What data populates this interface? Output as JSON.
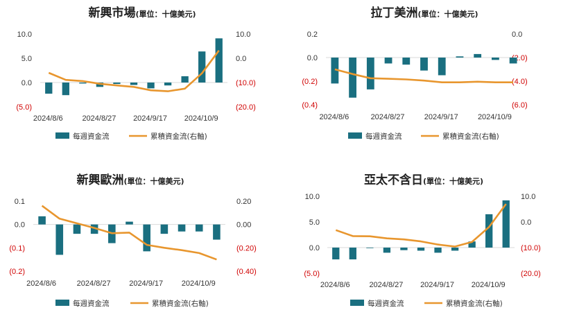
{
  "legend": {
    "bar_label": "每週資金流",
    "line_label": "累積資金流(右軸)"
  },
  "colors": {
    "bar": "#1a6f80",
    "line": "#e8962e",
    "axis": "#d9d9d9",
    "negative_tick": "#d00000",
    "tick": "#333333"
  },
  "chart_data": [
    {
      "type": "bar+line",
      "title": "新興市場",
      "title_unit": "(單位：十億美元)",
      "x_tick_labels": [
        "2024/8/6",
        "2024/8/27",
        "2024/9/17",
        "2024/10/9"
      ],
      "x_tick_indices": [
        0,
        3,
        6,
        9
      ],
      "categories": [
        "2024/8/6",
        "2024/8/13",
        "2024/8/20",
        "2024/8/27",
        "2024/9/3",
        "2024/9/10",
        "2024/9/17",
        "2024/9/24",
        "2024/10/2",
        "2024/10/9",
        "2024/10/16"
      ],
      "left_axis": {
        "min": -5,
        "max": 10,
        "ticks": [
          10,
          5,
          0,
          -5
        ],
        "labels": [
          "10.0",
          "5.0",
          "0.0",
          "(5.0)"
        ]
      },
      "right_axis": {
        "min": -20,
        "max": 10,
        "ticks": [
          10,
          0,
          -10,
          -20
        ],
        "labels": [
          "10.0",
          "0.0",
          "(10.0)",
          "(20.0)"
        ]
      },
      "series": [
        {
          "name": "每週資金流",
          "kind": "bar",
          "axis": "left",
          "values": [
            -2.3,
            -2.6,
            -0.2,
            -0.9,
            -0.3,
            -0.5,
            -1.2,
            -0.6,
            1.3,
            6.4,
            9.1
          ]
        },
        {
          "name": "累積資金流(右軸)",
          "kind": "line",
          "axis": "right",
          "values": [
            -6.0,
            -8.9,
            -9.4,
            -10.5,
            -11.2,
            -11.8,
            -13.2,
            -13.6,
            -12.5,
            -6.2,
            3.2
          ]
        }
      ]
    },
    {
      "type": "bar+line",
      "title": "拉丁美洲",
      "title_unit": "(單位：十億美元)",
      "x_tick_labels": [
        "2024/8/6",
        "2024/8/27",
        "2024/9/17",
        "2024/10/9"
      ],
      "x_tick_indices": [
        0,
        3,
        6,
        9
      ],
      "categories": [
        "2024/8/6",
        "2024/8/13",
        "2024/8/20",
        "2024/8/27",
        "2024/9/3",
        "2024/9/10",
        "2024/9/17",
        "2024/9/24",
        "2024/10/2",
        "2024/10/9",
        "2024/10/16"
      ],
      "left_axis": {
        "min": -0.4,
        "max": 0.2,
        "ticks": [
          0.2,
          0,
          -0.2,
          -0.4
        ],
        "labels": [
          "0.2",
          "0.0",
          "(0.2)",
          "(0.4)"
        ]
      },
      "right_axis": {
        "min": -6,
        "max": 0,
        "ticks": [
          0,
          -2,
          -4,
          -6
        ],
        "labels": [
          "0.0",
          "(2.0)",
          "(4.0)",
          "(6.0)"
        ]
      },
      "series": [
        {
          "name": "每週資金流",
          "kind": "bar",
          "axis": "left",
          "values": [
            -0.22,
            -0.34,
            -0.27,
            -0.05,
            -0.06,
            -0.11,
            -0.15,
            0.01,
            0.03,
            -0.02,
            -0.05
          ]
        },
        {
          "name": "累積資金流(右軸)",
          "kind": "line",
          "axis": "right",
          "values": [
            -3.0,
            -3.4,
            -3.75,
            -3.8,
            -3.85,
            -3.95,
            -4.1,
            -4.1,
            -4.05,
            -4.1,
            -4.1
          ]
        }
      ]
    },
    {
      "type": "bar+line",
      "title": "新興歐洲",
      "title_unit": "(單位：十億美元)",
      "x_tick_labels": [
        "2024/8/6",
        "2024/8/27",
        "2024/9/17",
        "2024/10/9"
      ],
      "x_tick_indices": [
        0,
        3,
        6,
        9
      ],
      "categories": [
        "2024/8/6",
        "2024/8/13",
        "2024/8/20",
        "2024/8/27",
        "2024/9/3",
        "2024/9/10",
        "2024/9/17",
        "2024/9/24",
        "2024/10/2",
        "2024/10/9",
        "2024/10/16"
      ],
      "left_axis": {
        "min": -0.2,
        "max": 0.1,
        "ticks": [
          0.1,
          0,
          -0.1,
          -0.2
        ],
        "labels": [
          "0.1",
          "0.0",
          "(0.1)",
          "(0.2)"
        ]
      },
      "right_axis": {
        "min": -0.4,
        "max": 0.2,
        "ticks": [
          0.2,
          0,
          -0.2,
          -0.4
        ],
        "labels": [
          "0.20",
          "0.00",
          "(0.20)",
          "(0.40)"
        ]
      },
      "series": [
        {
          "name": "每週資金流",
          "kind": "bar",
          "axis": "left",
          "values": [
            0.035,
            -0.13,
            -0.04,
            -0.04,
            -0.08,
            0.012,
            -0.115,
            -0.04,
            -0.03,
            -0.03,
            -0.065
          ]
        },
        {
          "name": "累積資金流(右軸)",
          "kind": "line",
          "axis": "right",
          "values": [
            0.16,
            0.05,
            0.01,
            -0.03,
            -0.075,
            -0.07,
            -0.175,
            -0.2,
            -0.22,
            -0.245,
            -0.3
          ]
        }
      ]
    },
    {
      "type": "bar+line",
      "title": "亞太不含日",
      "title_unit": "(單位：十億美元)",
      "x_tick_labels": [
        "2024/8/6",
        "2024/8/27",
        "2024/9/17",
        "2024/10/9"
      ],
      "x_tick_indices": [
        0,
        3,
        6,
        9
      ],
      "categories": [
        "2024/8/6",
        "2024/8/13",
        "2024/8/20",
        "2024/8/27",
        "2024/9/3",
        "2024/9/10",
        "2024/9/17",
        "2024/9/24",
        "2024/10/2",
        "2024/10/9",
        "2024/10/16"
      ],
      "left_axis": {
        "min": -5,
        "max": 10,
        "ticks": [
          10,
          5,
          0,
          -5
        ],
        "labels": [
          "10.0",
          "5.0",
          "0.0",
          "(5.0)"
        ]
      },
      "right_axis": {
        "min": -20,
        "max": 10,
        "ticks": [
          10,
          0,
          -10,
          -20
        ],
        "labels": [
          "10.0",
          "0.0",
          "(10.0)",
          "(20.0)"
        ]
      },
      "series": [
        {
          "name": "每週資金流",
          "kind": "bar",
          "axis": "left",
          "values": [
            -2.3,
            -2.3,
            -0.1,
            -1.0,
            -0.5,
            -0.6,
            -1.0,
            -0.6,
            1.2,
            6.5,
            9.2
          ]
        },
        {
          "name": "累積資金流(右軸)",
          "kind": "line",
          "axis": "right",
          "values": [
            -3.2,
            -5.5,
            -5.6,
            -6.4,
            -6.8,
            -7.6,
            -8.8,
            -9.6,
            -7.8,
            -2.0,
            7.0
          ]
        }
      ]
    }
  ]
}
